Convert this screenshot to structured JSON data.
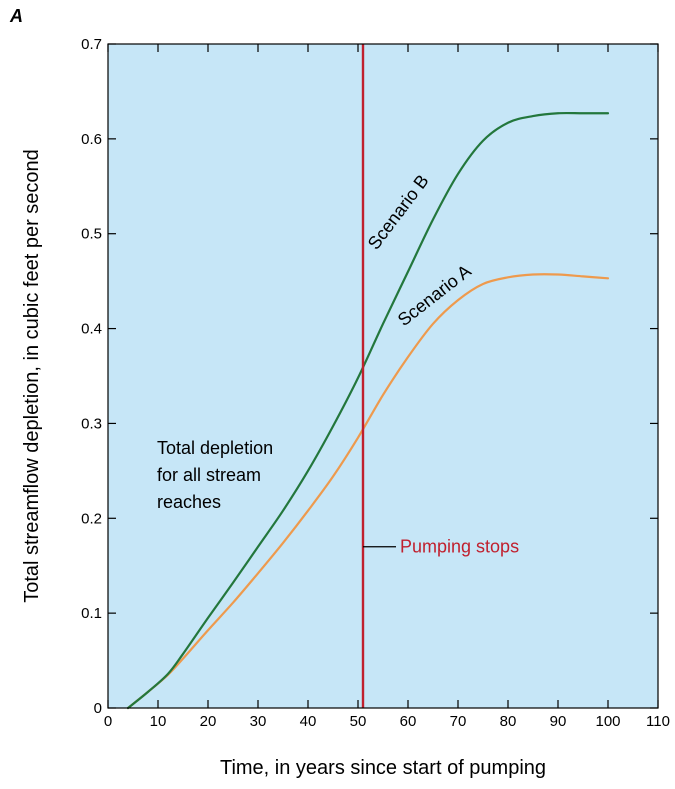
{
  "panel_label": "A",
  "colors": {
    "plot_background": "#c6e6f7",
    "scenario_a": "#ee9a4d",
    "scenario_b": "#23773c",
    "pumping_line": "#c0202e",
    "text": "#000000"
  },
  "chart_data": {
    "type": "line",
    "title": "",
    "xlabel": "Time, in years since start of pumping",
    "ylabel": "Total streamflow depletion, in cubic feet per second",
    "xlim": [
      0,
      110
    ],
    "ylim": [
      0,
      0.7
    ],
    "xticks": [
      0,
      10,
      20,
      30,
      40,
      50,
      60,
      70,
      80,
      90,
      100,
      110
    ],
    "yticks": [
      0,
      0.1,
      0.2,
      0.3,
      0.4,
      0.5,
      0.6,
      0.7
    ],
    "grid": false,
    "series": [
      {
        "name": "Scenario A",
        "color": "#ee9a4d",
        "x": [
          4,
          8,
          12,
          15,
          20,
          25,
          30,
          35,
          40,
          45,
          50,
          55,
          60,
          65,
          70,
          75,
          80,
          85,
          90,
          95,
          100
        ],
        "y": [
          0,
          0.017,
          0.035,
          0.052,
          0.082,
          0.111,
          0.142,
          0.174,
          0.208,
          0.244,
          0.285,
          0.33,
          0.37,
          0.405,
          0.43,
          0.447,
          0.454,
          0.457,
          0.457,
          0.455,
          0.453
        ]
      },
      {
        "name": "Scenario B",
        "color": "#23773c",
        "x": [
          4,
          8,
          12,
          15,
          20,
          25,
          30,
          35,
          40,
          45,
          50,
          55,
          60,
          65,
          70,
          75,
          80,
          85,
          90,
          95,
          100
        ],
        "y": [
          0,
          0.017,
          0.036,
          0.057,
          0.095,
          0.132,
          0.17,
          0.208,
          0.25,
          0.297,
          0.348,
          0.405,
          0.46,
          0.515,
          0.563,
          0.598,
          0.617,
          0.624,
          0.627,
          0.627,
          0.627
        ]
      }
    ],
    "pumping_stops": {
      "x": 51,
      "label": "Pumping stops",
      "label_y": 0.17
    },
    "annotations": [
      {
        "id": "scenario-b-label",
        "text": "Scenario B",
        "x": 59,
        "y": 0.519,
        "angle": -53
      },
      {
        "id": "scenario-a-label",
        "text": "Scenario A",
        "x": 66,
        "y": 0.43,
        "angle": -38
      }
    ],
    "depletion_note": [
      "Total depletion",
      "for all stream",
      "reaches"
    ]
  }
}
